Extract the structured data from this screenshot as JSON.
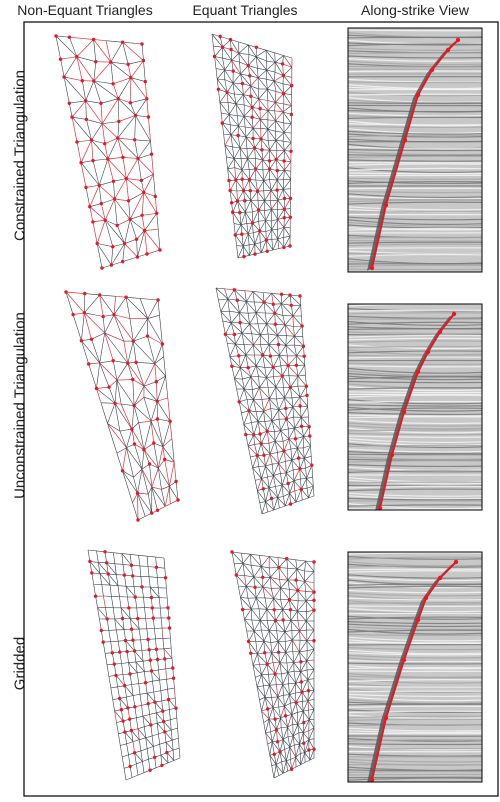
{
  "columns": [
    "Non-Equant Triangles",
    "Equant Triangles",
    "Along-strike View"
  ],
  "rows": [
    "Constrained Triangulation",
    "Unconstrained Triangulation",
    "Gridded"
  ],
  "colors": {
    "mesh_edge": "#3a3f48",
    "constraint_edge": "#e0303a",
    "node": "#e01b24",
    "fault_trace": "#e01b24",
    "seismic_bg": "#c8c8c8",
    "fault_body": "#555555"
  }
}
